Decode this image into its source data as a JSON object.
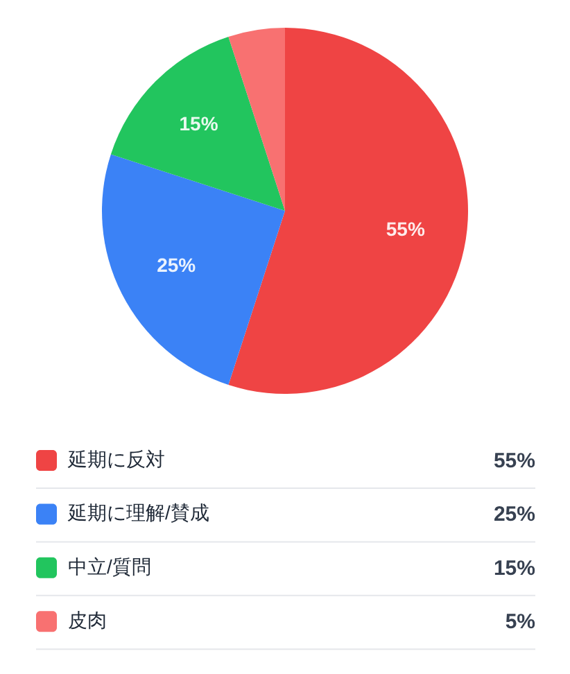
{
  "chart_data": {
    "type": "pie",
    "categories": [
      "延期に反対",
      "延期に理解/賛成",
      "中立/質問",
      "皮肉"
    ],
    "values": [
      55,
      25,
      15,
      5
    ],
    "colors": [
      "#ef4444",
      "#3b82f6",
      "#22c55e",
      "#f87171"
    ],
    "value_labels": [
      "55%",
      "25%",
      "15%",
      "5%"
    ],
    "legend": "bottom"
  }
}
